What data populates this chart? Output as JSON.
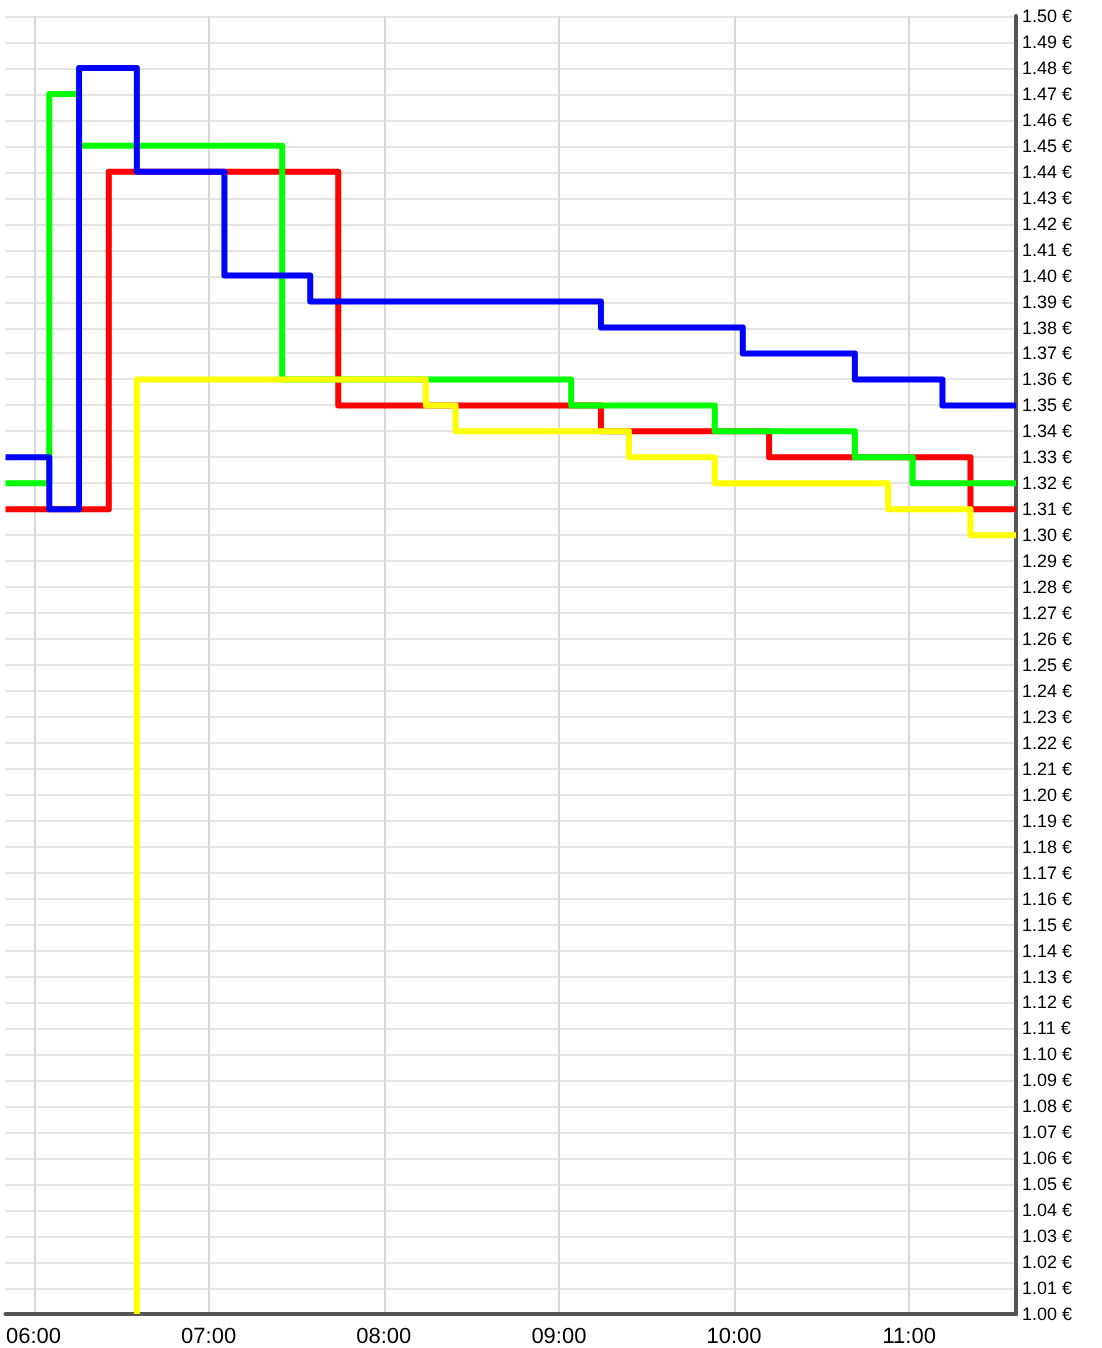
{
  "chart_data": {
    "type": "step",
    "grid": true,
    "marker": "none",
    "line_style": "solid",
    "xlim": [
      5.84,
      11.61
    ],
    "xticks": [
      {
        "value": 6,
        "label": "06:00"
      },
      {
        "value": 7,
        "label": "07:00"
      },
      {
        "value": 8,
        "label": "08:00"
      },
      {
        "value": 9,
        "label": "09:00"
      },
      {
        "value": 10,
        "label": "10:00"
      },
      {
        "value": 11,
        "label": "11:00"
      }
    ],
    "ylim": [
      1.0,
      1.5
    ],
    "yticks": [
      {
        "value": 1.0,
        "label": "1.00 €"
      },
      {
        "value": 1.01,
        "label": "1.01 €"
      },
      {
        "value": 1.02,
        "label": "1.02 €"
      },
      {
        "value": 1.03,
        "label": "1.03 €"
      },
      {
        "value": 1.04,
        "label": "1.04 €"
      },
      {
        "value": 1.05,
        "label": "1.05 €"
      },
      {
        "value": 1.06,
        "label": "1.06 €"
      },
      {
        "value": 1.07,
        "label": "1.07 €"
      },
      {
        "value": 1.08,
        "label": "1.08 €"
      },
      {
        "value": 1.09,
        "label": "1.09 €"
      },
      {
        "value": 1.1,
        "label": "1.10 €"
      },
      {
        "value": 1.11,
        "label": "1.11 €"
      },
      {
        "value": 1.12,
        "label": "1.12 €"
      },
      {
        "value": 1.13,
        "label": "1.13 €"
      },
      {
        "value": 1.14,
        "label": "1.14 €"
      },
      {
        "value": 1.15,
        "label": "1.15 €"
      },
      {
        "value": 1.16,
        "label": "1.16 €"
      },
      {
        "value": 1.17,
        "label": "1.17 €"
      },
      {
        "value": 1.18,
        "label": "1.18 €"
      },
      {
        "value": 1.19,
        "label": "1.19 €"
      },
      {
        "value": 1.2,
        "label": "1.20 €"
      },
      {
        "value": 1.21,
        "label": "1.21 €"
      },
      {
        "value": 1.22,
        "label": "1.22 €"
      },
      {
        "value": 1.23,
        "label": "1.23 €"
      },
      {
        "value": 1.24,
        "label": "1.24 €"
      },
      {
        "value": 1.25,
        "label": "1.25 €"
      },
      {
        "value": 1.26,
        "label": "1.26 €"
      },
      {
        "value": 1.27,
        "label": "1.27 €"
      },
      {
        "value": 1.28,
        "label": "1.28 €"
      },
      {
        "value": 1.29,
        "label": "1.29 €"
      },
      {
        "value": 1.3,
        "label": "1.30 €"
      },
      {
        "value": 1.31,
        "label": "1.31 €"
      },
      {
        "value": 1.32,
        "label": "1.32 €"
      },
      {
        "value": 1.33,
        "label": "1.33 €"
      },
      {
        "value": 1.34,
        "label": "1.34 €"
      },
      {
        "value": 1.35,
        "label": "1.35 €"
      },
      {
        "value": 1.36,
        "label": "1.36 €"
      },
      {
        "value": 1.37,
        "label": "1.37 €"
      },
      {
        "value": 1.38,
        "label": "1.38 €"
      },
      {
        "value": 1.39,
        "label": "1.39 €"
      },
      {
        "value": 1.4,
        "label": "1.40 €"
      },
      {
        "value": 1.41,
        "label": "1.41 €"
      },
      {
        "value": 1.42,
        "label": "1.42 €"
      },
      {
        "value": 1.43,
        "label": "1.43 €"
      },
      {
        "value": 1.44,
        "label": "1.44 €"
      },
      {
        "value": 1.45,
        "label": "1.45 €"
      },
      {
        "value": 1.46,
        "label": "1.46 €"
      },
      {
        "value": 1.47,
        "label": "1.47 €"
      },
      {
        "value": 1.48,
        "label": "1.48 €"
      },
      {
        "value": 1.49,
        "label": "1.49 €"
      },
      {
        "value": 1.5,
        "label": "1.50 €"
      }
    ],
    "series": [
      {
        "color": "#ff0000",
        "x": [
          5.84,
          6.43,
          7.74,
          9.24,
          10.2,
          11.35,
          11.61
        ],
        "values": [
          1.31,
          1.44,
          1.35,
          1.34,
          1.33,
          1.31,
          1.31
        ]
      },
      {
        "color": "#00ff00",
        "x": [
          5.84,
          6.09,
          6.26,
          7.42,
          9.07,
          9.89,
          10.69,
          11.02,
          11.61
        ],
        "values": [
          1.32,
          1.47,
          1.45,
          1.36,
          1.35,
          1.34,
          1.33,
          1.32,
          1.32
        ]
      },
      {
        "color": "#0000ff",
        "x": [
          5.84,
          6.09,
          6.26,
          6.59,
          7.09,
          7.58,
          9.24,
          10.05,
          10.69,
          11.19,
          11.61
        ],
        "values": [
          1.33,
          1.31,
          1.48,
          1.44,
          1.4,
          1.39,
          1.38,
          1.37,
          1.36,
          1.35,
          1.35
        ]
      },
      {
        "color": "#ffff00",
        "x": [
          6.59,
          6.59,
          8.24,
          8.41,
          9.4,
          9.89,
          10.88,
          11.35,
          11.61
        ],
        "values": [
          1.0,
          1.36,
          1.35,
          1.34,
          1.33,
          1.32,
          1.31,
          1.3,
          1.3
        ]
      }
    ]
  }
}
